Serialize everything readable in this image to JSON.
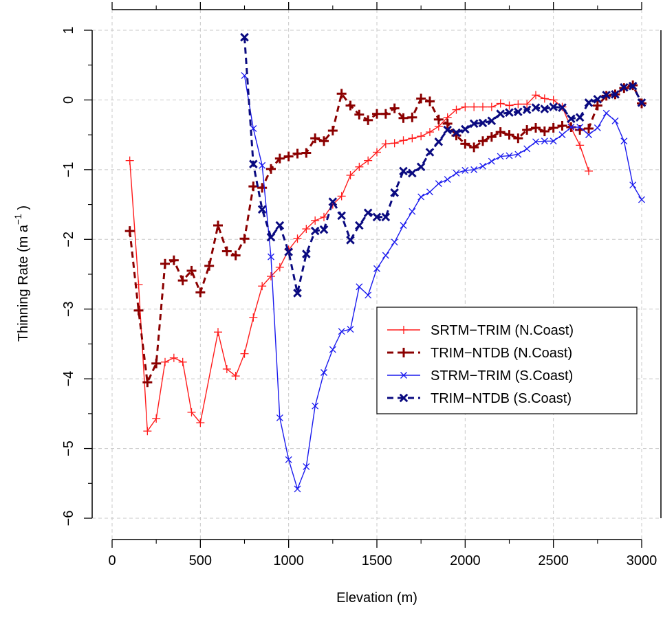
{
  "chart_data": {
    "type": "line",
    "xlabel": "Elevation (m)",
    "ylabel": "Thinning Rate (m a",
    "ylabel_sup": "−1",
    "ylabel_close": " )",
    "xlim": [
      0,
      3000
    ],
    "ylim": [
      -6,
      1
    ],
    "xticks": [
      0,
      500,
      1000,
      1500,
      2000,
      2500,
      3000
    ],
    "yticks": [
      -6,
      -5,
      -4,
      -3,
      -2,
      -1,
      0,
      1
    ],
    "xtick_labels": [
      "0",
      "500",
      "1000",
      "1500",
      "2000",
      "2500",
      "3000"
    ],
    "ytick_labels": [
      "−6",
      "−5",
      "−4",
      "−3",
      "−2",
      "−1",
      "0",
      "1"
    ],
    "grid": true,
    "legend_position": "right",
    "series": [
      {
        "name": "SRTM−TRIM (N.Coast)",
        "color": "#ff1a1a",
        "marker": "plus",
        "dash": "solid",
        "x": [
          100,
          150,
          200,
          250,
          300,
          350,
          400,
          450,
          500,
          600,
          650,
          700,
          750,
          800,
          850,
          900,
          950,
          1000,
          1050,
          1100,
          1150,
          1200,
          1250,
          1300,
          1350,
          1400,
          1450,
          1500,
          1550,
          1600,
          1650,
          1700,
          1750,
          1800,
          1850,
          1900,
          1950,
          2000,
          2050,
          2100,
          2150,
          2200,
          2250,
          2300,
          2350,
          2400,
          2450,
          2500,
          2550,
          2600,
          2650,
          2700
        ],
        "y": [
          -0.87,
          -2.65,
          -4.75,
          -4.57,
          -3.76,
          -3.7,
          -3.76,
          -4.48,
          -4.63,
          -3.33,
          -3.86,
          -3.96,
          -3.64,
          -3.12,
          -2.67,
          -2.53,
          -2.4,
          -2.15,
          -1.99,
          -1.85,
          -1.73,
          -1.68,
          -1.5,
          -1.38,
          -1.08,
          -0.96,
          -0.87,
          -0.75,
          -0.63,
          -0.62,
          -0.58,
          -0.55,
          -0.52,
          -0.46,
          -0.38,
          -0.25,
          -0.14,
          -0.1,
          -0.1,
          -0.1,
          -0.1,
          -0.05,
          -0.08,
          -0.06,
          -0.06,
          0.07,
          0.02,
          0.0,
          -0.1,
          -0.4,
          -0.65,
          -1.02
        ]
      },
      {
        "name": "TRIM−NTDB (N.Coast)",
        "color": "#8b0000",
        "marker": "plus",
        "dash": "dashed",
        "x": [
          100,
          150,
          200,
          250,
          300,
          350,
          400,
          450,
          500,
          550,
          600,
          650,
          700,
          750,
          800,
          850,
          900,
          950,
          1000,
          1050,
          1100,
          1150,
          1200,
          1250,
          1300,
          1350,
          1400,
          1450,
          1500,
          1550,
          1600,
          1650,
          1700,
          1750,
          1800,
          1850,
          1900,
          1950,
          2000,
          2050,
          2100,
          2150,
          2200,
          2250,
          2300,
          2350,
          2400,
          2450,
          2500,
          2550,
          2600,
          2650,
          2700,
          2750,
          2800,
          2850,
          2900,
          2950,
          3000
        ],
        "y": [
          -1.88,
          -3.02,
          -4.05,
          -3.78,
          -2.35,
          -2.3,
          -2.59,
          -2.45,
          -2.76,
          -2.38,
          -1.8,
          -2.17,
          -2.23,
          -1.99,
          -1.24,
          -1.26,
          -0.99,
          -0.84,
          -0.81,
          -0.77,
          -0.76,
          -0.55,
          -0.59,
          -0.44,
          0.09,
          -0.08,
          -0.21,
          -0.29,
          -0.2,
          -0.2,
          -0.12,
          -0.26,
          -0.25,
          0.02,
          -0.02,
          -0.28,
          -0.34,
          -0.51,
          -0.63,
          -0.68,
          -0.59,
          -0.53,
          -0.46,
          -0.5,
          -0.55,
          -0.43,
          -0.4,
          -0.45,
          -0.4,
          -0.37,
          -0.39,
          -0.43,
          -0.41,
          -0.08,
          0.06,
          0.08,
          0.17,
          0.21,
          -0.05
        ]
      },
      {
        "name": "STRM−TRIM (S.Coast)",
        "color": "#1a1aee",
        "marker": "cross",
        "dash": "solid",
        "x": [
          750,
          800,
          850,
          900,
          950,
          1000,
          1050,
          1100,
          1150,
          1200,
          1250,
          1300,
          1350,
          1400,
          1450,
          1500,
          1550,
          1600,
          1650,
          1700,
          1750,
          1800,
          1850,
          1900,
          1950,
          2000,
          2050,
          2100,
          2150,
          2200,
          2250,
          2300,
          2350,
          2400,
          2450,
          2500,
          2550,
          2600,
          2650,
          2700,
          2750,
          2800,
          2850,
          2900,
          2950,
          3000
        ],
        "y": [
          0.35,
          -0.41,
          -0.94,
          -2.25,
          -4.56,
          -5.16,
          -5.58,
          -5.26,
          -4.39,
          -3.91,
          -3.58,
          -3.32,
          -3.29,
          -2.68,
          -2.8,
          -2.42,
          -2.23,
          -2.04,
          -1.8,
          -1.6,
          -1.39,
          -1.32,
          -1.2,
          -1.14,
          -1.05,
          -1.01,
          -1.0,
          -0.95,
          -0.88,
          -0.81,
          -0.8,
          -0.78,
          -0.7,
          -0.6,
          -0.59,
          -0.59,
          -0.5,
          -0.39,
          -0.39,
          -0.5,
          -0.4,
          -0.19,
          -0.3,
          -0.59,
          -1.22,
          -1.43
        ]
      },
      {
        "name": "TRIM−NTDB (S.Coast)",
        "color": "#0a0a80",
        "marker": "cross",
        "dash": "dashed",
        "x": [
          750,
          800,
          850,
          900,
          950,
          1000,
          1050,
          1100,
          1150,
          1200,
          1250,
          1300,
          1350,
          1400,
          1450,
          1500,
          1550,
          1600,
          1650,
          1700,
          1750,
          1800,
          1850,
          1900,
          1950,
          2000,
          2050,
          2100,
          2150,
          2200,
          2250,
          2300,
          2350,
          2400,
          2450,
          2500,
          2550,
          2600,
          2650,
          2700,
          2750,
          2800,
          2850,
          2900,
          2950,
          3000
        ],
        "y": [
          0.9,
          -0.92,
          -1.57,
          -1.97,
          -1.8,
          -2.18,
          -2.77,
          -2.21,
          -1.88,
          -1.86,
          -1.46,
          -1.66,
          -2.01,
          -1.8,
          -1.62,
          -1.68,
          -1.68,
          -1.33,
          -1.02,
          -1.05,
          -0.96,
          -0.75,
          -0.6,
          -0.43,
          -0.47,
          -0.42,
          -0.34,
          -0.33,
          -0.3,
          -0.2,
          -0.18,
          -0.17,
          -0.14,
          -0.11,
          -0.13,
          -0.1,
          -0.11,
          -0.27,
          -0.25,
          -0.04,
          0.01,
          0.07,
          0.08,
          0.18,
          0.2,
          -0.04
        ]
      }
    ]
  }
}
